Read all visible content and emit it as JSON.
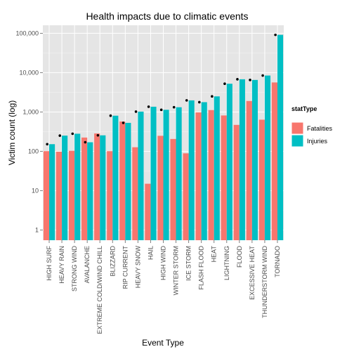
{
  "chart_data": {
    "type": "bar",
    "title": "Health impacts due to climatic events",
    "xlabel": "Event Type",
    "ylabel": "Victim count (log)",
    "y_scale": "log10",
    "ylim": [
      0.55,
      160000
    ],
    "y_ticks": [
      1,
      10,
      100,
      1000,
      10000,
      100000
    ],
    "y_tick_labels": [
      "1",
      "10",
      "100",
      "1,000",
      "10,000",
      "100,000"
    ],
    "grid": true,
    "legend": {
      "title": "statType",
      "position": "right",
      "entries": [
        "Fatalities",
        "Injuries"
      ]
    },
    "categories": [
      "HIGH SURF",
      "HEAVY RAIN",
      "STRONG WIND",
      "AVALANCHE",
      "EXTREME COLD/WIND CHILL",
      "BLIZZARD",
      "RIP CURRENT",
      "HEAVY SNOW",
      "HAIL",
      "HIGH WIND",
      "WINTER STORM",
      "ICE STORM",
      "FLASH FLOOD",
      "HEAT",
      "LIGHTNING",
      "FLOOD",
      "EXCESSIVE HEAT",
      "THUNDERSTORM WIND",
      "TORNADO"
    ],
    "series": [
      {
        "name": "Fatalities",
        "color": "#f8766d",
        "values": [
          101,
          98,
          103,
          224,
          285,
          101,
          572,
          127,
          15,
          248,
          206,
          89,
          978,
          1118,
          816,
          470,
          1903,
          637,
          5633
        ]
      },
      {
        "name": "Injuries",
        "color": "#00bfc4",
        "values": [
          152,
          251,
          280,
          170,
          255,
          805,
          529,
          1021,
          1361,
          1137,
          1321,
          1975,
          1777,
          2494,
          5230,
          6789,
          6525,
          8445,
          91346
        ]
      }
    ],
    "marker_series": "Injuries"
  }
}
